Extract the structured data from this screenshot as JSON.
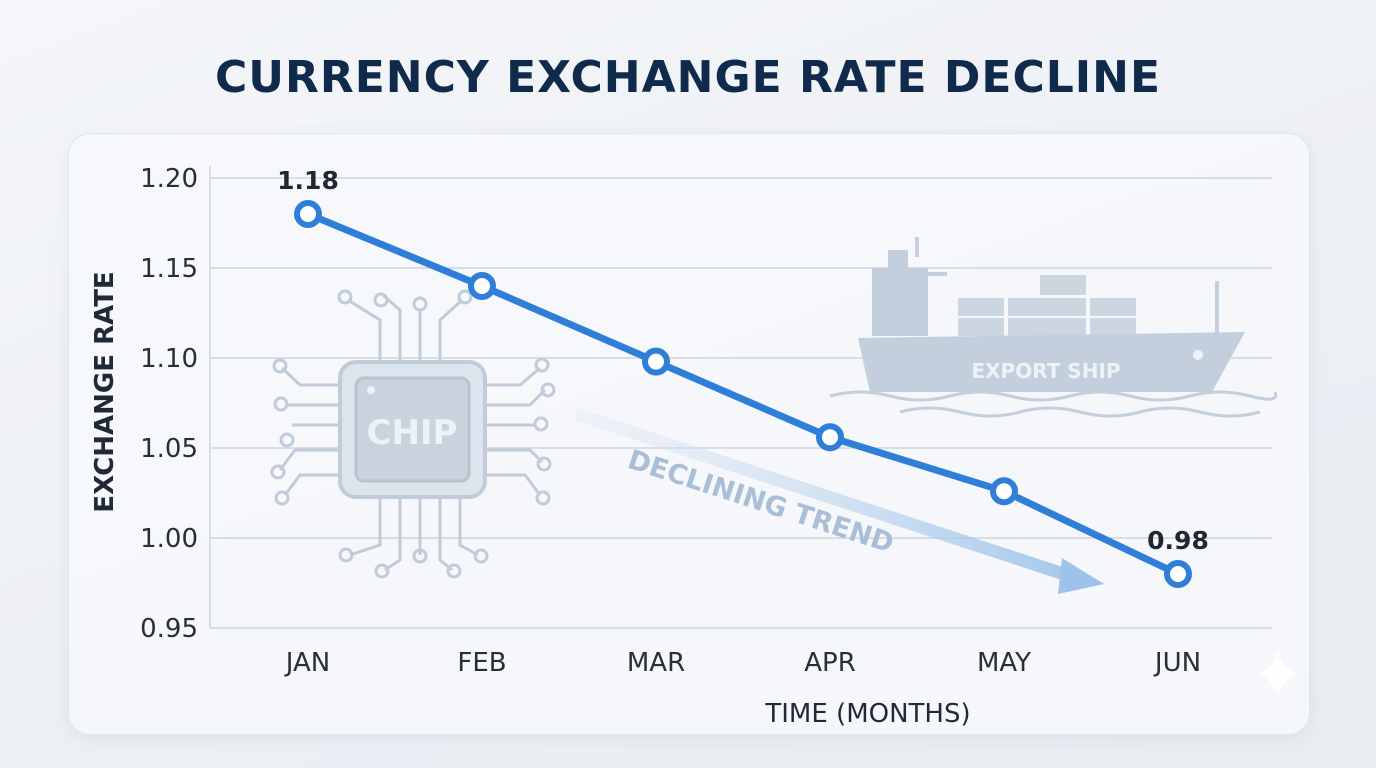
{
  "chart_data": {
    "type": "line",
    "title": "CURRENCY EXCHANGE RATE DECLINE",
    "xlabel": "TIME (MONTHS)",
    "ylabel": "EXCHANGE RATE",
    "categories": [
      "JAN",
      "FEB",
      "MAR",
      "APR",
      "MAY",
      "JUN"
    ],
    "series": [
      {
        "values": [
          1.18,
          1.14,
          1.098,
          1.056,
          1.026,
          0.98
        ]
      }
    ],
    "ylim": [
      0.95,
      1.2
    ],
    "yticks": [
      0.95,
      1.0,
      1.05,
      1.1,
      1.15,
      1.2
    ],
    "ytick_labels": [
      "0.95",
      "1.00",
      "1.05",
      "1.10",
      "1.15",
      "1.20"
    ],
    "data_labels": [
      {
        "index": 0,
        "text": "1.18"
      },
      {
        "index": 5,
        "text": "0.98"
      }
    ],
    "annotations": {
      "trend": "DECLINING TREND",
      "chip": "CHIP",
      "ship": "EXPORT SHIP"
    },
    "grid": true,
    "colors": {
      "line": "#2f7fd9",
      "grid": "#cfd6df",
      "title": "#0f2a4a",
      "icon": "#b4c2d2"
    }
  }
}
